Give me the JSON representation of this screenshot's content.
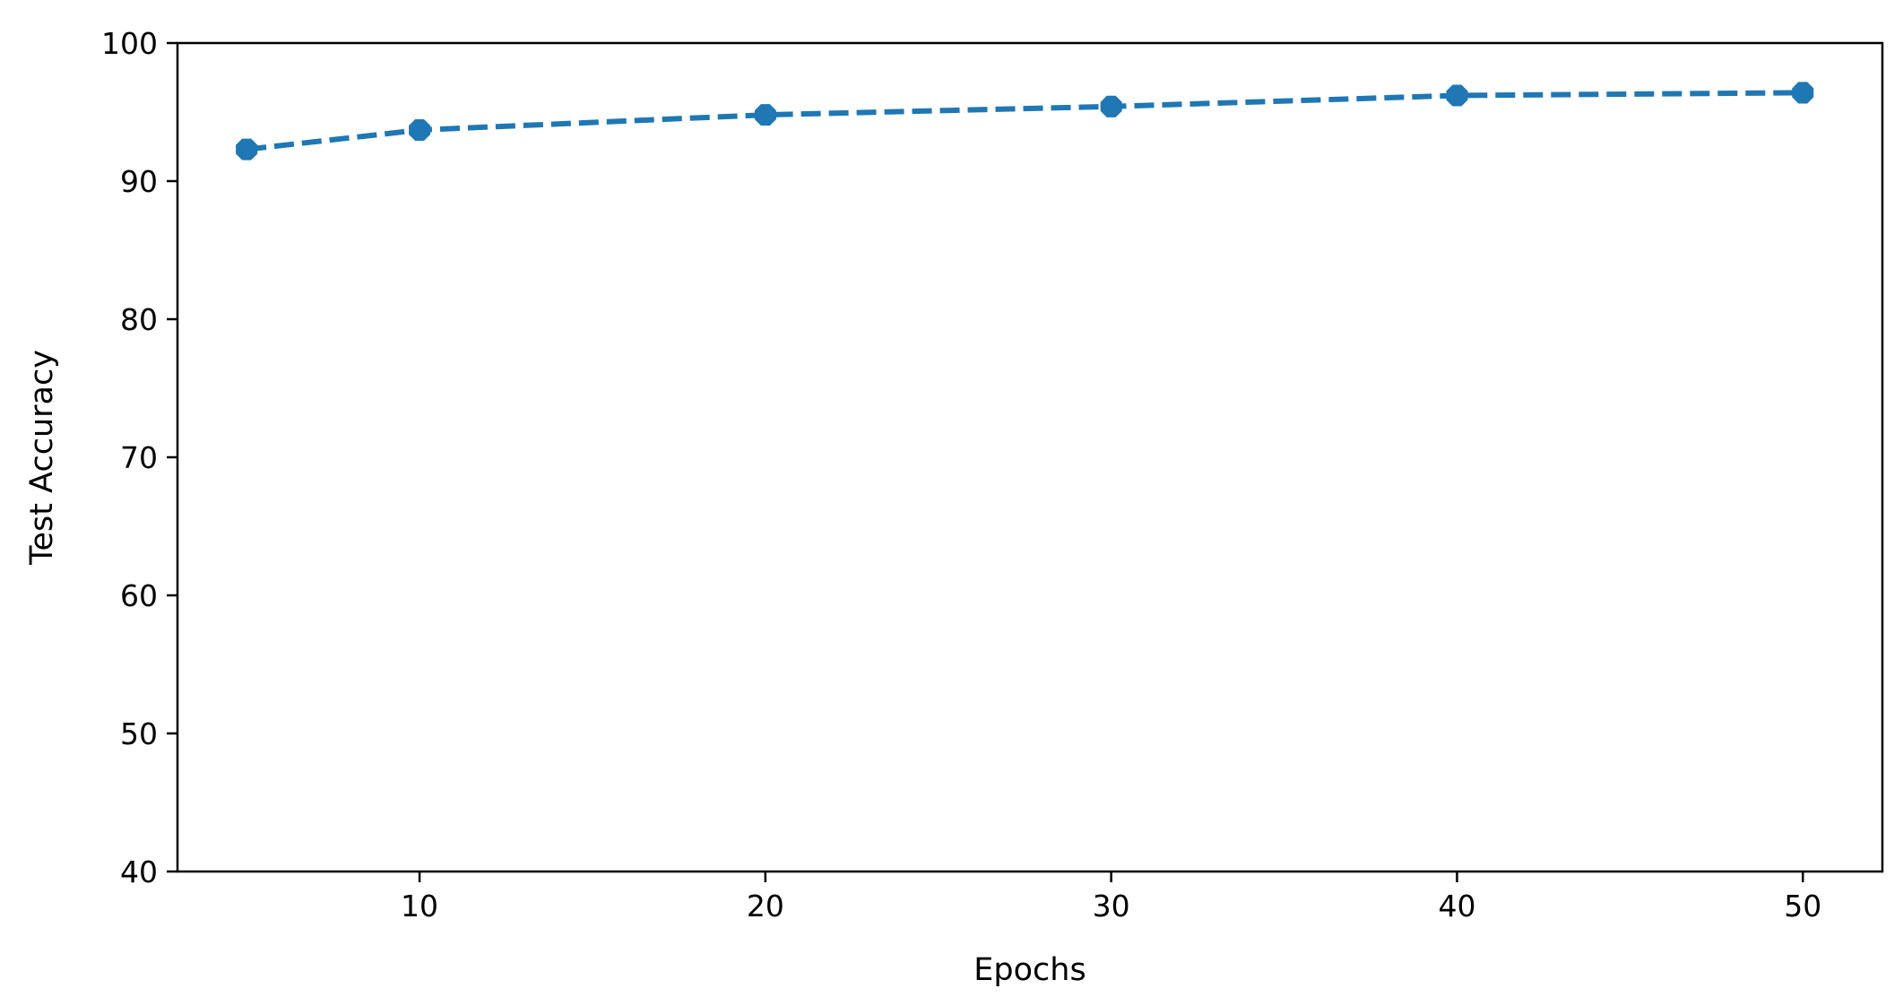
{
  "chart_data": {
    "type": "line",
    "title": "",
    "xlabel": "Epochs",
    "ylabel": "Test Accuracy",
    "xlim": [
      3,
      52.3
    ],
    "ylim": [
      40,
      100
    ],
    "x_ticks": [
      10,
      20,
      30,
      40,
      50
    ],
    "y_ticks": [
      40,
      50,
      60,
      70,
      80,
      90,
      100
    ],
    "grid": false,
    "legend": "none",
    "series": [
      {
        "color": "#1f77b4",
        "line_style": "dashed",
        "marker": "octagon",
        "x": [
          5,
          10,
          20,
          30,
          40,
          50
        ],
        "y": [
          92.3,
          93.7,
          94.8,
          95.4,
          96.2,
          96.4
        ]
      }
    ]
  }
}
